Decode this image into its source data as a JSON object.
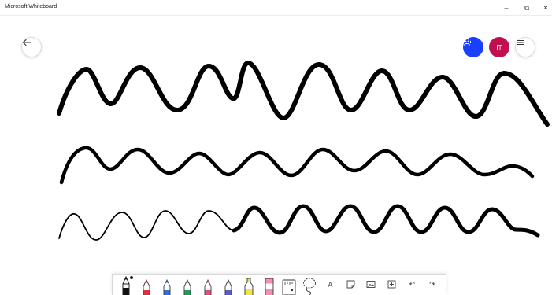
{
  "window": {
    "title": "Microsoft Whiteboard",
    "minimize_glyph": "–",
    "maximize_glyph": "⧉",
    "close_glyph": "✕"
  },
  "header": {
    "back_icon": "arrow-left-icon",
    "share_icon": "person-add-icon",
    "avatar_initials": "IT",
    "avatar_color": "#c0104f",
    "share_color": "#1a3fff",
    "menu_icon": "hamburger-menu-icon"
  },
  "canvas": {
    "ink_color": "#000000",
    "strokes": [
      "wave-stroke-thick",
      "wave-stroke-medium",
      "wave-stroke-thin-to-thick"
    ]
  },
  "toolbar": {
    "tools": [
      {
        "name": "pen-black-tool",
        "color": "#111111",
        "active": true
      },
      {
        "name": "pen-red-tool",
        "color": "#e0323a"
      },
      {
        "name": "pen-blue-tool",
        "color": "#2a6fdb"
      },
      {
        "name": "pen-green-tool",
        "color": "#1f9d55"
      },
      {
        "name": "pen-pink-tool",
        "color": "#e04f7a"
      },
      {
        "name": "pen-purple-tool",
        "color": "#5a5acd"
      },
      {
        "name": "highlighter-yellow-tool",
        "color": "#f3e24a"
      },
      {
        "name": "highlighter-pink-tool",
        "color": "#f48fb1"
      },
      {
        "name": "ruler-tool"
      },
      {
        "name": "lasso-tool"
      }
    ],
    "text_tool_glyph": "A",
    "undo_glyph": "↶",
    "redo_glyph": "↷"
  }
}
